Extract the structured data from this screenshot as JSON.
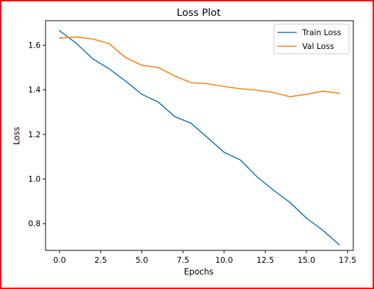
{
  "chart_data": {
    "type": "line",
    "title": "Loss Plot",
    "xlabel": "Epochs",
    "ylabel": "Loss",
    "xlim": [
      -0.85,
      17.85
    ],
    "ylim": [
      0.68,
      1.71
    ],
    "xticks": [
      0.0,
      2.5,
      5.0,
      7.5,
      10.0,
      12.5,
      15.0,
      17.5
    ],
    "xtick_labels": [
      "0.0",
      "2.5",
      "5.0",
      "7.5",
      "10.0",
      "12.5",
      "15.0",
      "17.5"
    ],
    "yticks": [
      0.8,
      1.0,
      1.2,
      1.4,
      1.6
    ],
    "ytick_labels": [
      "0.8",
      "1.0",
      "1.2",
      "1.4",
      "1.6"
    ],
    "grid": false,
    "legend_position": "top-right",
    "x": [
      0,
      1,
      2,
      3,
      4,
      5,
      6,
      7,
      8,
      9,
      10,
      11,
      12,
      13,
      14,
      15,
      16,
      17
    ],
    "series": [
      {
        "name": "Train Loss",
        "color": "#1f77b4",
        "values": [
          1.665,
          1.61,
          1.54,
          1.495,
          1.44,
          1.38,
          1.345,
          1.28,
          1.25,
          1.185,
          1.12,
          1.085,
          1.01,
          0.95,
          0.895,
          0.825,
          0.77,
          0.705
        ]
      },
      {
        "name": "Val Loss",
        "color": "#ff7f0e",
        "values": [
          1.632,
          1.637,
          1.628,
          1.608,
          1.545,
          1.51,
          1.5,
          1.462,
          1.432,
          1.427,
          1.415,
          1.405,
          1.398,
          1.388,
          1.369,
          1.38,
          1.394,
          1.384
        ]
      }
    ]
  }
}
